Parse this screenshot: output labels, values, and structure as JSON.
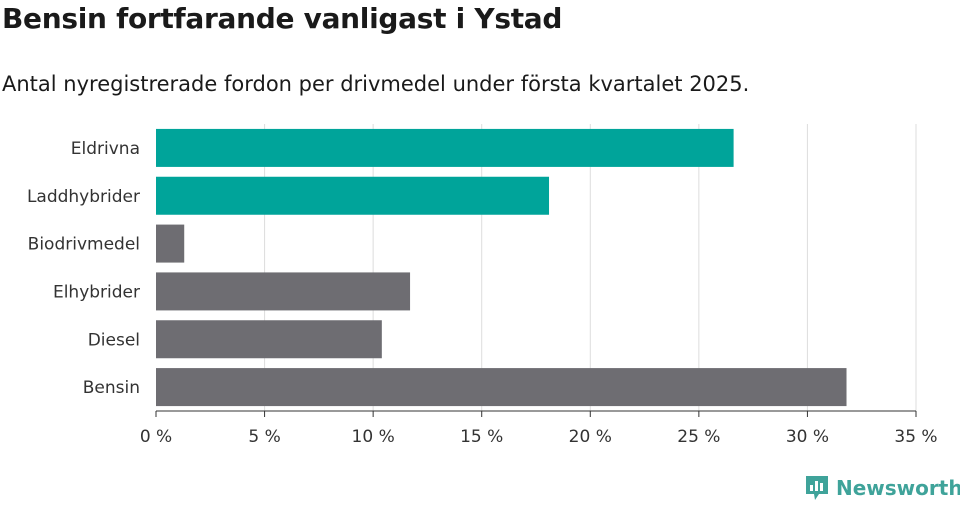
{
  "title": "Bensin fortfarande vanligast i Ystad",
  "subtitle": "Antal nyregistrerade fordon per drivmedel under första kvartalet 2025.",
  "brand": "Newsworthy",
  "colors": {
    "highlight": "#00a49a",
    "default": "#6e6d72",
    "grid": "#dddddd",
    "axis": "#333333",
    "brand": "#3fa39a"
  },
  "chart_data": {
    "type": "bar",
    "orientation": "horizontal",
    "categories": [
      "Eldrivna",
      "Laddhybrider",
      "Biodrivmedel",
      "Elhybrider",
      "Diesel",
      "Bensin"
    ],
    "values": [
      26.6,
      18.1,
      1.3,
      11.7,
      10.4,
      31.8
    ],
    "highlighted": [
      "Eldrivna",
      "Laddhybrider"
    ],
    "xlim": [
      0,
      35
    ],
    "xticks": [
      0,
      5,
      10,
      15,
      20,
      25,
      30,
      35
    ],
    "xtick_labels": [
      "0 %",
      "5 %",
      "10 %",
      "15 %",
      "20 %",
      "25 %",
      "30 %",
      "35 %"
    ],
    "grid": true
  }
}
